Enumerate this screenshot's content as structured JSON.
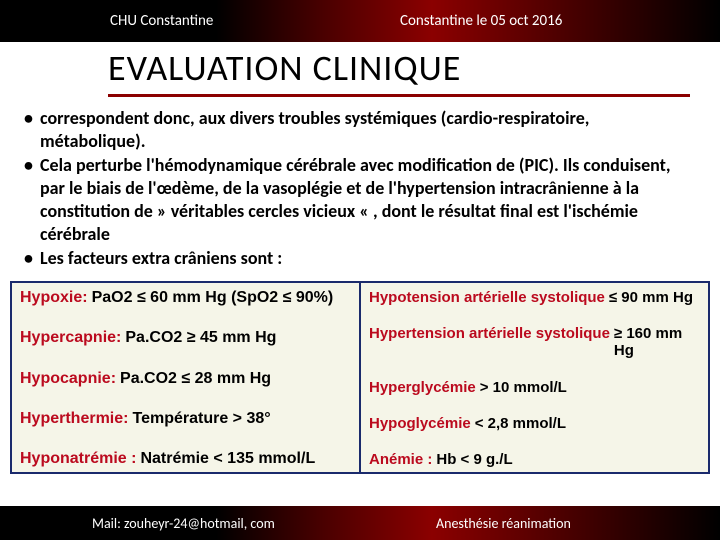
{
  "header": {
    "left": "CHU Constantine",
    "right": "Constantine le  05 oct 2016"
  },
  "title": "EVALUATION CLINIQUE",
  "bullets": [
    "correspondent donc, aux divers troubles systémiques (cardio-respiratoire, métabolique).",
    "Cela perturbe l'hémodynamique cérébrale avec modification de (PIC). Ils conduisent, par le biais de l'œdème, de la vasoplégie et de l'hypertension intracrânienne à la constitution de  » véritables cercles vicieux « , dont le résultat final est l'ischémie cérébrale",
    "Les facteurs extra crâniens sont :"
  ],
  "criteria": {
    "left": [
      {
        "label": "Hypoxie:",
        "value": "PaO2 ≤ 60 mm Hg (SpO2 ≤ 90%)"
      },
      {
        "label": "Hypercapnie:",
        "value": "Pa.CO2 ≥ 45 mm Hg"
      },
      {
        "label": "Hypocapnie:",
        "value": "Pa.CO2 ≤ 28 mm Hg"
      },
      {
        "label": "Hyperthermie:",
        "value": "Température > 38°"
      },
      {
        "label": "Hyponatrémie :",
        "value": "Natrémie < 135 mmol/L"
      }
    ],
    "right": [
      {
        "label": "Hypotension artérielle systolique",
        "value": "≤ 90 mm Hg"
      },
      {
        "label": "Hypertension artérielle systolique",
        "value": "≥ 160 mm Hg"
      },
      {
        "label": "Hyperglycémie",
        "value": "> 10 mmol/L"
      },
      {
        "label": "Hypoglycémie",
        "value": "< 2,8 mmol/L"
      },
      {
        "label": "Anémie :",
        "value": "Hb < 9 g./L"
      }
    ]
  },
  "footer": {
    "left": "Mail: zouheyr-24@hotmail, com",
    "right": "Anesthésie réanimation"
  },
  "colors": {
    "accent_red": "#8b0000",
    "criteria_label": "#bb0a1e",
    "criteria_bg": "#f5f5e8",
    "criteria_border": "#1a2a6c"
  }
}
